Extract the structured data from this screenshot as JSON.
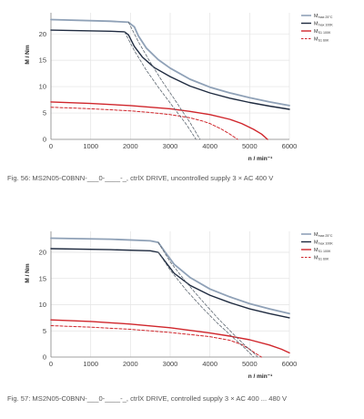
{
  "chart_data": [
    {
      "type": "line",
      "xlabel": "n / min⁻¹",
      "ylabel": "M / Nm",
      "xlim": [
        0,
        6000
      ],
      "ylim": [
        0,
        24
      ],
      "xticks": [
        "0",
        "1000",
        "2000",
        "3000",
        "4000",
        "5000",
        "6000"
      ],
      "yticks": [
        "0",
        "5",
        "10",
        "15",
        "20"
      ],
      "grid": true,
      "legend_position": "top-right",
      "caption": "Fig. 56: MS2N05-C0BNN-___0-____-_, ctrlX DRIVE, uncontrolled supply 3 × AC 400 V",
      "series": [
        {
          "name": "M",
          "sub": "max 25°C",
          "color": "#8fa1b7",
          "style": "solid",
          "width": 1.8,
          "x": [
            0,
            1500,
            1950,
            2100,
            2200,
            2400,
            2700,
            3000,
            3500,
            4000,
            4500,
            5000,
            5500,
            6000
          ],
          "y": [
            22.7,
            22.4,
            22.2,
            21.3,
            19.6,
            17.3,
            15.1,
            13.5,
            11.4,
            9.9,
            8.8,
            7.9,
            7.1,
            6.4
          ]
        },
        {
          "name": "M",
          "sub": "max 100K",
          "color": "#1f2b40",
          "style": "solid",
          "width": 1.4,
          "x": [
            0,
            1500,
            1850,
            1950,
            2100,
            2300,
            2600,
            3000,
            3500,
            4000,
            4500,
            5000,
            5500,
            6000
          ],
          "y": [
            20.7,
            20.5,
            20.4,
            19.8,
            17.6,
            15.6,
            13.6,
            11.9,
            10.1,
            8.8,
            7.8,
            7.0,
            6.3,
            5.7
          ]
        },
        {
          "name": "M",
          "sub": "S1 100K",
          "color": "#d0262c",
          "style": "solid",
          "width": 1.4,
          "x": [
            0,
            1000,
            2000,
            3000,
            3500,
            4000,
            4500,
            4800,
            5100,
            5300,
            5450
          ],
          "y": [
            7.1,
            6.8,
            6.4,
            5.8,
            5.3,
            4.7,
            3.8,
            3.0,
            1.9,
            1.0,
            0
          ]
        },
        {
          "name": "M",
          "sub": "S1 60K",
          "color": "#d0262c",
          "style": "dashed",
          "width": 1.0,
          "x": [
            0,
            1000,
            2000,
            2500,
            3000,
            3500,
            3800,
            4000,
            4300,
            4500,
            4700
          ],
          "y": [
            6.1,
            5.8,
            5.4,
            5.1,
            4.7,
            4.1,
            3.5,
            3.0,
            1.9,
            1.0,
            0
          ]
        },
        {
          "name": "",
          "sub": "",
          "color": "#5c6670",
          "style": "dashed",
          "width": 0.8,
          "in_legend": false,
          "x": [
            1950,
            2200,
            2500,
            2800,
            3100,
            3300,
            3500,
            3650,
            3750
          ],
          "y": [
            22.2,
            18.5,
            14.6,
            11.0,
            7.7,
            5.4,
            3.2,
            1.3,
            0
          ]
        },
        {
          "name": "",
          "sub": "",
          "color": "#5c6670",
          "style": "dashed",
          "width": 0.8,
          "in_legend": false,
          "x": [
            1850,
            2100,
            2400,
            2700,
            3000,
            3200,
            3400,
            3550,
            3650
          ],
          "y": [
            20.4,
            16.8,
            13.1,
            9.9,
            6.9,
            4.9,
            2.9,
            1.2,
            0
          ]
        }
      ]
    },
    {
      "type": "line",
      "xlabel": "n / min⁻¹",
      "ylabel": "M / Nm",
      "xlim": [
        0,
        6000
      ],
      "ylim": [
        0,
        24
      ],
      "xticks": [
        "0",
        "1000",
        "2000",
        "3000",
        "4000",
        "5000",
        "6000"
      ],
      "yticks": [
        "0",
        "5",
        "10",
        "15",
        "20"
      ],
      "grid": true,
      "legend_position": "top-right",
      "caption": "Fig. 57: MS2N05-C0BNN-___0-____-_, ctrlX DRIVE, controlled supply 3 × AC 400 ... 480 V",
      "series": [
        {
          "name": "M",
          "sub": "max 25°C",
          "color": "#8fa1b7",
          "style": "solid",
          "width": 1.8,
          "x": [
            0,
            1500,
            2500,
            2700,
            2850,
            3100,
            3500,
            4000,
            4500,
            5000,
            5500,
            6000
          ],
          "y": [
            22.7,
            22.5,
            22.2,
            21.9,
            20.3,
            17.7,
            15.2,
            13.0,
            11.5,
            10.2,
            9.2,
            8.3
          ]
        },
        {
          "name": "M",
          "sub": "max 100K",
          "color": "#1f2b40",
          "style": "solid",
          "width": 1.4,
          "x": [
            0,
            1500,
            2500,
            2700,
            2850,
            3100,
            3500,
            4000,
            4500,
            5000,
            5500,
            6000
          ],
          "y": [
            20.7,
            20.5,
            20.3,
            20.0,
            18.5,
            16.0,
            13.7,
            11.8,
            10.4,
            9.2,
            8.3,
            7.5
          ]
        },
        {
          "name": "M",
          "sub": "S1 100K",
          "color": "#d0262c",
          "style": "solid",
          "width": 1.4,
          "x": [
            0,
            1000,
            2000,
            3000,
            4000,
            4500,
            5000,
            5500,
            5800,
            6000
          ],
          "y": [
            7.1,
            6.8,
            6.3,
            5.6,
            4.6,
            4.0,
            3.3,
            2.3,
            1.5,
            0.8
          ]
        },
        {
          "name": "M",
          "sub": "S1 60K",
          "color": "#d0262c",
          "style": "dashed",
          "width": 1.0,
          "x": [
            0,
            1000,
            2000,
            3000,
            4000,
            4500,
            4800,
            5000,
            5150,
            5300
          ],
          "y": [
            6.0,
            5.7,
            5.3,
            4.7,
            3.9,
            3.2,
            2.4,
            1.5,
            0.7,
            0
          ]
        },
        {
          "name": "",
          "sub": "",
          "color": "#5c6670",
          "style": "dashed",
          "width": 0.8,
          "in_legend": false,
          "x": [
            2700,
            3000,
            3400,
            3800,
            4200,
            4600,
            4900,
            5100,
            5200
          ],
          "y": [
            21.9,
            18.2,
            14.3,
            10.8,
            7.4,
            4.3,
            2.1,
            0.8,
            0
          ]
        },
        {
          "name": "",
          "sub": "",
          "color": "#5c6670",
          "style": "dashed",
          "width": 0.8,
          "in_legend": false,
          "x": [
            2700,
            3000,
            3400,
            3800,
            4200,
            4600,
            4850,
            5000,
            5100
          ],
          "y": [
            20.0,
            16.6,
            12.8,
            9.5,
            6.4,
            3.6,
            1.9,
            0.8,
            0
          ]
        }
      ]
    }
  ]
}
